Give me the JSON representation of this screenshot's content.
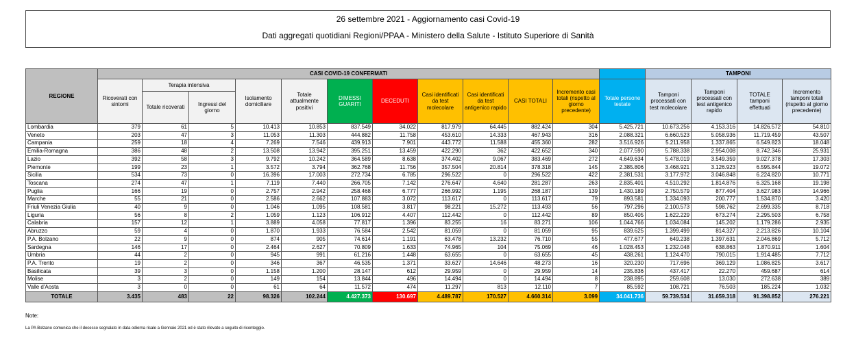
{
  "header": {
    "title": "26 settembre 2021 - Aggiornamento casi Covid-19",
    "subtitle": "Dati aggregati quotidiani Regioni/PPAA - Ministero della Salute - Istituto Superiore di Sanità"
  },
  "table": {
    "group_headers": [
      "CASI COVID-19 CONFERMATI",
      "TAMPONI"
    ],
    "terapia_intensiva": "Terapia intensiva",
    "columns": [
      "REGIONE",
      "Ricoverati con sintomi",
      "Totale ricoverati",
      "Ingressi del giorno",
      "Isolamento domiciliare",
      "Totale attualmente positivi",
      "DIMESSI GUARITI",
      "DECEDUTI",
      "Casi identificati da test molecolare",
      "Casi identificati da test antigenico rapido",
      "CASI TOTALI",
      "Incremento casi totali (rispetto al giorno precedente)",
      "Totale persone testate",
      "Tamponi processati con test molecolare",
      "Tamponi processati con test antigenico rapido",
      "TOTALE tamponi effettuati",
      "Incremento tamponi totali (rispetto al giorno precedente)"
    ],
    "rows": [
      [
        "Lombardia",
        "379",
        "61",
        "5",
        "10.413",
        "10.853",
        "837.549",
        "34.022",
        "817.979",
        "64.445",
        "882.424",
        "304",
        "5.425.721",
        "10.673.256",
        "4.153.316",
        "14.826.572",
        "54.810"
      ],
      [
        "Veneto",
        "203",
        "47",
        "3",
        "11.053",
        "11.303",
        "444.882",
        "11.758",
        "453.610",
        "14.333",
        "467.943",
        "316",
        "2.088.321",
        "6.660.523",
        "5.058.936",
        "11.719.459",
        "43.507"
      ],
      [
        "Campania",
        "259",
        "18",
        "4",
        "7.269",
        "7.546",
        "439.913",
        "7.901",
        "443.772",
        "11.588",
        "455.360",
        "282",
        "3.516.926",
        "5.211.958",
        "1.337.865",
        "6.549.823",
        "18.048"
      ],
      [
        "Emilia-Romagna",
        "386",
        "48",
        "2",
        "13.508",
        "13.942",
        "395.251",
        "13.459",
        "422.290",
        "362",
        "422.652",
        "340",
        "2.077.590",
        "5.788.338",
        "2.954.008",
        "8.742.346",
        "25.931"
      ],
      [
        "Lazio",
        "392",
        "58",
        "3",
        "9.792",
        "10.242",
        "364.589",
        "8.638",
        "374.402",
        "9.067",
        "383.469",
        "272",
        "4.649.634",
        "5.478.019",
        "3.549.359",
        "9.027.378",
        "17.303"
      ],
      [
        "Piemonte",
        "199",
        "23",
        "1",
        "3.572",
        "3.794",
        "362.768",
        "11.756",
        "357.504",
        "20.814",
        "378.318",
        "145",
        "2.385.806",
        "3.468.921",
        "3.126.923",
        "6.595.844",
        "19.072"
      ],
      [
        "Sicilia",
        "534",
        "73",
        "0",
        "16.396",
        "17.003",
        "272.734",
        "6.785",
        "296.522",
        "0",
        "296.522",
        "422",
        "2.381.531",
        "3.177.972",
        "3.046.848",
        "6.224.820",
        "10.771"
      ],
      [
        "Toscana",
        "274",
        "47",
        "1",
        "7.119",
        "7.440",
        "266.705",
        "7.142",
        "276.647",
        "4.640",
        "281.287",
        "263",
        "2.835.401",
        "4.510.292",
        "1.814.876",
        "6.325.168",
        "19.198"
      ],
      [
        "Puglia",
        "166",
        "19",
        "0",
        "2.757",
        "2.942",
        "258.468",
        "6.777",
        "266.992",
        "1.195",
        "268.187",
        "139",
        "1.430.189",
        "2.750.579",
        "877.404",
        "3.627.983",
        "14.966"
      ],
      [
        "Marche",
        "55",
        "21",
        "0",
        "2.586",
        "2.662",
        "107.883",
        "3.072",
        "113.617",
        "0",
        "113.617",
        "79",
        "893.581",
        "1.334.093",
        "200.777",
        "1.534.870",
        "3.420"
      ],
      [
        "Friuli Venezia Giulia",
        "40",
        "9",
        "0",
        "1.046",
        "1.095",
        "108.581",
        "3.817",
        "98.221",
        "15.272",
        "113.493",
        "56",
        "797.296",
        "2.100.573",
        "598.762",
        "2.699.335",
        "8.718"
      ],
      [
        "Liguria",
        "56",
        "8",
        "2",
        "1.059",
        "1.123",
        "106.912",
        "4.407",
        "112.442",
        "0",
        "112.442",
        "89",
        "850.405",
        "1.622.229",
        "673.274",
        "2.295.503",
        "6.758"
      ],
      [
        "Calabria",
        "157",
        "12",
        "1",
        "3.889",
        "4.058",
        "77.817",
        "1.396",
        "83.255",
        "16",
        "83.271",
        "106",
        "1.044.766",
        "1.034.084",
        "145.202",
        "1.179.286",
        "2.935"
      ],
      [
        "Abruzzo",
        "59",
        "4",
        "0",
        "1.870",
        "1.933",
        "76.584",
        "2.542",
        "81.059",
        "0",
        "81.059",
        "95",
        "839.625",
        "1.399.499",
        "814.327",
        "2.213.826",
        "10.104"
      ],
      [
        "P.A. Bolzano",
        "22",
        "9",
        "0",
        "874",
        "905",
        "74.614",
        "1.191",
        "63.478",
        "13.232",
        "76.710",
        "55",
        "477.677",
        "649.238",
        "1.397.631",
        "2.046.869",
        "5.712"
      ],
      [
        "Sardegna",
        "146",
        "17",
        "0",
        "2.464",
        "2.627",
        "70.809",
        "1.633",
        "74.965",
        "104",
        "75.069",
        "46",
        "1.028.453",
        "1.232.048",
        "638.863",
        "1.870.911",
        "1.604"
      ],
      [
        "Umbria",
        "44",
        "2",
        "0",
        "945",
        "991",
        "61.216",
        "1.448",
        "63.655",
        "0",
        "63.655",
        "45",
        "438.261",
        "1.124.470",
        "790.015",
        "1.914.485",
        "7.712"
      ],
      [
        "P.A. Trento",
        "19",
        "2",
        "0",
        "346",
        "367",
        "46.535",
        "1.371",
        "33.627",
        "14.646",
        "48.273",
        "16",
        "320.230",
        "717.696",
        "369.129",
        "1.086.825",
        "3.617"
      ],
      [
        "Basilicata",
        "39",
        "3",
        "0",
        "1.158",
        "1.200",
        "28.147",
        "612",
        "29.959",
        "0",
        "29.959",
        "14",
        "235.836",
        "437.417",
        "22.270",
        "459.687",
        "614"
      ],
      [
        "Molise",
        "3",
        "2",
        "0",
        "149",
        "154",
        "13.844",
        "496",
        "14.494",
        "0",
        "14.494",
        "8",
        "238.895",
        "259.608",
        "13.030",
        "272.638",
        "389"
      ],
      [
        "Valle d'Aosta",
        "3",
        "0",
        "0",
        "61",
        "64",
        "11.572",
        "474",
        "11.297",
        "813",
        "12.110",
        "7",
        "85.592",
        "108.721",
        "76.503",
        "185.224",
        "1.032"
      ]
    ],
    "total": [
      "TOTALE",
      "3.435",
      "483",
      "22",
      "98.326",
      "102.244",
      "4.427.373",
      "130.697",
      "4.489.787",
      "170.527",
      "4.660.314",
      "3.099",
      "34.041.736",
      "59.739.534",
      "31.659.318",
      "91.398.852",
      "276.221"
    ]
  },
  "notes": {
    "label": "Note:",
    "text": "La PA Bolzano comunica che il decesso segnalato in data odierna risale a Gennaio 2021 ed è stato rilevato a seguito di riconteggio."
  }
}
